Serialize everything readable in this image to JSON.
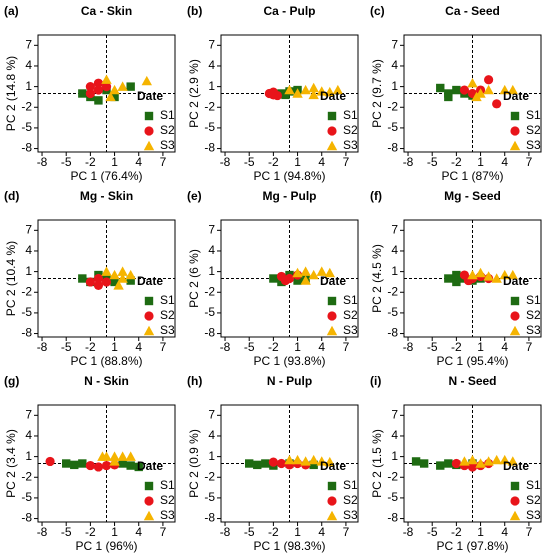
{
  "chart_data": [
    {
      "type": "scatter",
      "panel": "(a)",
      "title": "Ca - Skin",
      "xlabel": "PC 1 (76.4%)",
      "ylabel": "PC 2 (14.8 %)",
      "legend_title": "Date",
      "xlim": [
        -8.5,
        8.5
      ],
      "ylim": [
        -8.5,
        8.5
      ],
      "xticks": [
        -8,
        -5,
        -2,
        1,
        4,
        7
      ],
      "yticks": [
        -8,
        -5,
        -2,
        1,
        4,
        7
      ],
      "series": [
        {
          "name": "S1",
          "color": "#1e6b12",
          "marker": "square",
          "x": [
            -3,
            -2,
            0,
            1,
            3,
            -1
          ],
          "y": [
            0,
            -0.5,
            0.5,
            -0.5,
            1,
            -1
          ]
        },
        {
          "name": "S2",
          "color": "#e8141a",
          "marker": "circle",
          "x": [
            -2,
            -1,
            -2,
            -1,
            0
          ],
          "y": [
            1,
            1.5,
            0,
            0.5,
            1
          ]
        },
        {
          "name": "S3",
          "color": "#f5b400",
          "marker": "triangle",
          "x": [
            0,
            1,
            2,
            5,
            0.5
          ],
          "y": [
            2,
            0.5,
            1,
            1.8,
            -0.5
          ]
        }
      ]
    },
    {
      "type": "scatter",
      "panel": "(b)",
      "title": "Ca - Pulp",
      "xlabel": "PC 1 (94.8%)",
      "ylabel": "PC 2 (2.9 %)",
      "legend_title": "Date",
      "xlim": [
        -8.5,
        8.5
      ],
      "ylim": [
        -8.5,
        8.5
      ],
      "xticks": [
        -8,
        -5,
        -2,
        1,
        4,
        7
      ],
      "yticks": [
        -8,
        -5,
        -2,
        1,
        4,
        7
      ],
      "series": [
        {
          "name": "S1",
          "color": "#1e6b12",
          "marker": "square",
          "x": [
            -1,
            0,
            -0.5,
            1
          ],
          "y": [
            0,
            0.3,
            -0.2,
            0.5
          ]
        },
        {
          "name": "S2",
          "color": "#e8141a",
          "marker": "circle",
          "x": [
            -2.5,
            -2,
            -1.5,
            -2
          ],
          "y": [
            0,
            0.2,
            -0.3,
            -0.2
          ]
        },
        {
          "name": "S3",
          "color": "#f5b400",
          "marker": "triangle",
          "x": [
            0,
            1,
            2,
            3,
            4,
            5,
            6,
            3
          ],
          "y": [
            0.5,
            0,
            0.5,
            -0.2,
            0.3,
            0.2,
            0.5,
            0.8
          ]
        }
      ]
    },
    {
      "type": "scatter",
      "panel": "(c)",
      "title": "Ca - Seed",
      "xlabel": "PC 1 (87%)",
      "ylabel": "PC 2 (9.7 %)",
      "legend_title": "Date",
      "xlim": [
        -8.5,
        8.5
      ],
      "ylim": [
        -8.5,
        8.5
      ],
      "xticks": [
        -8,
        -5,
        -2,
        1,
        4,
        7
      ],
      "yticks": [
        -8,
        -5,
        -2,
        1,
        4,
        7
      ],
      "series": [
        {
          "name": "S1",
          "color": "#1e6b12",
          "marker": "square",
          "x": [
            -4,
            -3,
            -2,
            -1,
            -3,
            0
          ],
          "y": [
            0.8,
            -0.5,
            0.5,
            0,
            0,
            -0.3
          ]
        },
        {
          "name": "S2",
          "color": "#e8141a",
          "marker": "circle",
          "x": [
            1,
            2,
            3,
            -1,
            0
          ],
          "y": [
            0.5,
            2,
            -1.5,
            0.5,
            0
          ]
        },
        {
          "name": "S3",
          "color": "#f5b400",
          "marker": "triangle",
          "x": [
            0,
            0.5,
            1,
            2,
            4,
            5
          ],
          "y": [
            1.5,
            -0.5,
            0,
            0.5,
            0.5,
            0.5
          ]
        }
      ]
    },
    {
      "type": "scatter",
      "panel": "(d)",
      "title": "Mg - Skin",
      "xlabel": "PC 1 (88.8%)",
      "ylabel": "PC 2 (10.4 %)",
      "legend_title": "Date",
      "xlim": [
        -8.5,
        8.5
      ],
      "ylim": [
        -8.5,
        8.5
      ],
      "xticks": [
        -8,
        -5,
        -2,
        1,
        4,
        7
      ],
      "yticks": [
        -8,
        -5,
        -2,
        1,
        4,
        7
      ],
      "series": [
        {
          "name": "S1",
          "color": "#1e6b12",
          "marker": "square",
          "x": [
            -3,
            -2,
            -1,
            0,
            1,
            3
          ],
          "y": [
            0,
            -0.5,
            0.5,
            0,
            -0.5,
            -0.3
          ]
        },
        {
          "name": "S2",
          "color": "#e8141a",
          "marker": "circle",
          "x": [
            -1,
            -2,
            0,
            -1
          ],
          "y": [
            -1,
            -0.5,
            -0.5,
            0
          ]
        },
        {
          "name": "S3",
          "color": "#f5b400",
          "marker": "triangle",
          "x": [
            0,
            1,
            2,
            2,
            3,
            1.5
          ],
          "y": [
            1,
            0.5,
            1,
            0,
            0.5,
            -1
          ]
        }
      ]
    },
    {
      "type": "scatter",
      "panel": "(e)",
      "title": "Mg - Pulp",
      "xlabel": "PC 1 (93.8%)",
      "ylabel": "PC 2 (6 %)",
      "legend_title": "Date",
      "xlim": [
        -8.5,
        8.5
      ],
      "ylim": [
        -8.5,
        8.5
      ],
      "xticks": [
        -8,
        -5,
        -2,
        1,
        4,
        7
      ],
      "yticks": [
        -8,
        -5,
        -2,
        1,
        4,
        7
      ],
      "series": [
        {
          "name": "S1",
          "color": "#1e6b12",
          "marker": "square",
          "x": [
            -2,
            -1,
            0,
            1,
            2
          ],
          "y": [
            0,
            -0.5,
            0.5,
            -0.3,
            0
          ]
        },
        {
          "name": "S2",
          "color": "#e8141a",
          "marker": "circle",
          "x": [
            -1,
            0,
            1,
            -0.5
          ],
          "y": [
            0.3,
            0,
            0.5,
            -0.3
          ]
        },
        {
          "name": "S3",
          "color": "#f5b400",
          "marker": "triangle",
          "x": [
            1,
            2,
            3,
            4,
            5,
            2
          ],
          "y": [
            0.8,
            1,
            0.5,
            1,
            0.8,
            -0.3
          ]
        }
      ]
    },
    {
      "type": "scatter",
      "panel": "(f)",
      "title": "Mg - Seed",
      "xlabel": "PC 1 (95.4%)",
      "ylabel": "PC 2 (4.5 %)",
      "legend_title": "Date",
      "xlim": [
        -8.5,
        8.5
      ],
      "ylim": [
        -8.5,
        8.5
      ],
      "xticks": [
        -8,
        -5,
        -2,
        1,
        4,
        7
      ],
      "yticks": [
        -8,
        -5,
        -2,
        1,
        4,
        7
      ],
      "series": [
        {
          "name": "S1",
          "color": "#1e6b12",
          "marker": "square",
          "x": [
            -3,
            -2,
            -1,
            0,
            1,
            -2
          ],
          "y": [
            0,
            0.5,
            0,
            -0.3,
            0,
            -0.5
          ]
        },
        {
          "name": "S2",
          "color": "#e8141a",
          "marker": "circle",
          "x": [
            -1,
            0,
            1,
            2,
            -0.5
          ],
          "y": [
            0.5,
            0,
            0.3,
            0,
            -0.3
          ]
        },
        {
          "name": "S3",
          "color": "#f5b400",
          "marker": "triangle",
          "x": [
            0,
            1,
            2,
            3,
            4,
            5
          ],
          "y": [
            0.5,
            0.8,
            0.3,
            0,
            0.5,
            0.5
          ]
        }
      ]
    },
    {
      "type": "scatter",
      "panel": "(g)",
      "title": "N - Skin",
      "xlabel": "PC 1 (96%)",
      "ylabel": "PC 2 (3.4 %)",
      "legend_title": "Date",
      "xlim": [
        -8.5,
        8.5
      ],
      "ylim": [
        -8.5,
        8.5
      ],
      "xticks": [
        -8,
        -5,
        -2,
        1,
        4,
        7
      ],
      "yticks": [
        -8,
        -5,
        -2,
        1,
        4,
        7
      ],
      "series": [
        {
          "name": "S1",
          "color": "#1e6b12",
          "marker": "square",
          "x": [
            -5,
            -4,
            -3,
            3,
            4,
            2
          ],
          "y": [
            0,
            -0.2,
            0,
            -0.3,
            -0.5,
            0
          ]
        },
        {
          "name": "S2",
          "color": "#e8141a",
          "marker": "circle",
          "x": [
            -7,
            -2,
            -1,
            0,
            1
          ],
          "y": [
            0.3,
            -0.3,
            -0.5,
            -0.3,
            -0.2
          ]
        },
        {
          "name": "S3",
          "color": "#f5b400",
          "marker": "triangle",
          "x": [
            -0.5,
            0,
            1,
            2,
            3,
            1
          ],
          "y": [
            1,
            1,
            1,
            1,
            1,
            0.3
          ]
        }
      ]
    },
    {
      "type": "scatter",
      "panel": "(h)",
      "title": "N - Pulp",
      "xlabel": "PC 1 (98.3%)",
      "ylabel": "PC 2 (0.9 %)",
      "legend_title": "Date",
      "xlim": [
        -8.5,
        8.5
      ],
      "ylim": [
        -8.5,
        8.5
      ],
      "xticks": [
        -8,
        -5,
        -2,
        1,
        4,
        7
      ],
      "yticks": [
        -8,
        -5,
        -2,
        1,
        4,
        7
      ],
      "series": [
        {
          "name": "S1",
          "color": "#1e6b12",
          "marker": "square",
          "x": [
            -5,
            -4,
            -3,
            -2,
            0,
            3
          ],
          "y": [
            0,
            -0.2,
            0,
            -0.3,
            0,
            -0.2
          ]
        },
        {
          "name": "S2",
          "color": "#e8141a",
          "marker": "circle",
          "x": [
            -2,
            -1,
            0,
            1,
            2
          ],
          "y": [
            0.2,
            0,
            -0.2,
            0,
            -0.2
          ]
        },
        {
          "name": "S3",
          "color": "#f5b400",
          "marker": "triangle",
          "x": [
            0,
            1,
            2,
            3,
            4,
            5
          ],
          "y": [
            0.5,
            0.5,
            0.3,
            0.5,
            0.3,
            0.2
          ]
        }
      ]
    },
    {
      "type": "scatter",
      "panel": "(i)",
      "title": "N - Seed",
      "xlabel": "PC 1 (97.8%)",
      "ylabel": "PC 2 (1.5 %)",
      "legend_title": "Date",
      "xlim": [
        -8.5,
        8.5
      ],
      "ylim": [
        -8.5,
        8.5
      ],
      "xticks": [
        -8,
        -5,
        -2,
        1,
        4,
        7
      ],
      "yticks": [
        -8,
        -5,
        -2,
        1,
        4,
        7
      ],
      "series": [
        {
          "name": "S1",
          "color": "#1e6b12",
          "marker": "square",
          "x": [
            -7,
            -6,
            -4,
            -3,
            -2,
            0
          ],
          "y": [
            0.3,
            0,
            -0.3,
            0,
            -0.2,
            0
          ]
        },
        {
          "name": "S2",
          "color": "#e8141a",
          "marker": "circle",
          "x": [
            -2,
            -1,
            0,
            1,
            2
          ],
          "y": [
            0,
            -0.3,
            -0.5,
            -0.3,
            0
          ]
        },
        {
          "name": "S3",
          "color": "#f5b400",
          "marker": "triangle",
          "x": [
            -1,
            0,
            1,
            2,
            3,
            4,
            5
          ],
          "y": [
            0.3,
            0.5,
            0,
            0.3,
            0.5,
            0.5,
            0.3
          ]
        }
      ]
    }
  ]
}
